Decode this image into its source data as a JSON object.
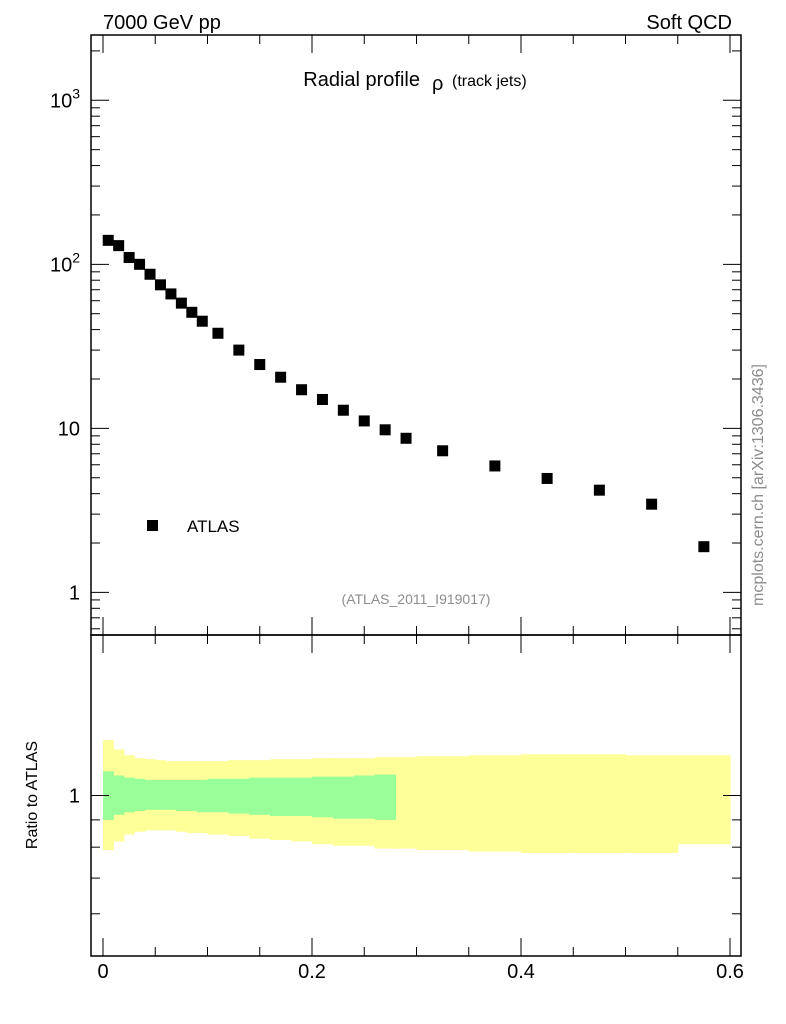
{
  "header": {
    "left": "7000 GeV pp",
    "right": "Soft QCD"
  },
  "side_label": "mcplots.cern.ch [arXiv:1306.3436]",
  "chart_data": {
    "type": "scatter",
    "title": {
      "main": "Radial profile",
      "symbol": "ρ",
      "sub": "(track jets)"
    },
    "analysis_label": "(ATLAS_2011_I919017)",
    "xlim": [
      0,
      0.6
    ],
    "x_ticks": [
      0,
      0.2,
      0.4,
      0.6
    ],
    "x_tick_labels": [
      "0",
      "0.2",
      "0.4",
      "0.6"
    ],
    "top_panel": {
      "yscale": "log",
      "ylim": [
        0.55,
        2500
      ],
      "y_tick_labels": [
        {
          "base": "1",
          "exp": "",
          "value": 1
        },
        {
          "base": "10",
          "exp": "",
          "value": 10
        },
        {
          "base": "10",
          "exp": "2",
          "value": 100
        },
        {
          "base": "10",
          "exp": "3",
          "value": 1000
        }
      ],
      "series": [
        {
          "name": "ATLAS",
          "color": "#000000",
          "marker": "square",
          "x": [
            0.005,
            0.015,
            0.025,
            0.035,
            0.045,
            0.055,
            0.065,
            0.075,
            0.085,
            0.095,
            0.11,
            0.13,
            0.15,
            0.17,
            0.19,
            0.21,
            0.23,
            0.25,
            0.27,
            0.29,
            0.325,
            0.375,
            0.425,
            0.475,
            0.525,
            0.575
          ],
          "y": [
            140,
            130,
            110,
            100,
            87,
            75,
            66,
            58,
            51,
            45,
            38,
            30,
            24.5,
            20.5,
            17.2,
            15,
            12.9,
            11.1,
            9.8,
            8.7,
            7.3,
            5.9,
            4.95,
            4.2,
            3.45,
            1.9
          ]
        }
      ],
      "legend": {
        "position": "lower-left",
        "entries": [
          "ATLAS"
        ]
      }
    },
    "bottom_panel": {
      "ylabel": "Ratio to ATLAS",
      "yscale": "log",
      "ylim": [
        0.5,
        2.0
      ],
      "y_tick_labels": [
        {
          "label": "1",
          "value": 1
        }
      ],
      "bands": [
        {
          "color": "#ffff99",
          "bins": [
            [
              0.0,
              0.01,
              0.79,
              1.27
            ],
            [
              0.01,
              0.02,
              0.82,
              1.22
            ],
            [
              0.02,
              0.03,
              0.845,
              1.19
            ],
            [
              0.03,
              0.04,
              0.855,
              1.175
            ],
            [
              0.04,
              0.05,
              0.86,
              1.17
            ],
            [
              0.05,
              0.06,
              0.86,
              1.165
            ],
            [
              0.06,
              0.07,
              0.86,
              1.16
            ],
            [
              0.07,
              0.08,
              0.855,
              1.16
            ],
            [
              0.08,
              0.09,
              0.85,
              1.16
            ],
            [
              0.09,
              0.1,
              0.85,
              1.16
            ],
            [
              0.1,
              0.12,
              0.845,
              1.16
            ],
            [
              0.12,
              0.14,
              0.84,
              1.165
            ],
            [
              0.14,
              0.16,
              0.83,
              1.165
            ],
            [
              0.16,
              0.18,
              0.825,
              1.17
            ],
            [
              0.18,
              0.2,
              0.82,
              1.17
            ],
            [
              0.2,
              0.22,
              0.81,
              1.175
            ],
            [
              0.22,
              0.24,
              0.805,
              1.175
            ],
            [
              0.24,
              0.26,
              0.805,
              1.175
            ],
            [
              0.26,
              0.28,
              0.795,
              1.18
            ],
            [
              0.28,
              0.3,
              0.795,
              1.18
            ],
            [
              0.3,
              0.35,
              0.79,
              1.185
            ],
            [
              0.35,
              0.4,
              0.785,
              1.19
            ],
            [
              0.4,
              0.45,
              0.78,
              1.195
            ],
            [
              0.45,
              0.5,
              0.78,
              1.195
            ],
            [
              0.5,
              0.55,
              0.78,
              1.19
            ],
            [
              0.55,
              0.6,
              0.81,
              1.19
            ]
          ]
        },
        {
          "color": "#99ff99",
          "bins": [
            [
              0.0,
              0.01,
              0.9,
              1.11
            ],
            [
              0.01,
              0.02,
              0.92,
              1.09
            ],
            [
              0.02,
              0.03,
              0.93,
              1.08
            ],
            [
              0.03,
              0.04,
              0.935,
              1.075
            ],
            [
              0.04,
              0.05,
              0.94,
              1.07
            ],
            [
              0.05,
              0.06,
              0.94,
              1.07
            ],
            [
              0.06,
              0.07,
              0.94,
              1.07
            ],
            [
              0.07,
              0.08,
              0.935,
              1.07
            ],
            [
              0.08,
              0.09,
              0.935,
              1.07
            ],
            [
              0.09,
              0.1,
              0.93,
              1.07
            ],
            [
              0.1,
              0.12,
              0.93,
              1.075
            ],
            [
              0.12,
              0.14,
              0.925,
              1.075
            ],
            [
              0.14,
              0.16,
              0.92,
              1.08
            ],
            [
              0.16,
              0.18,
              0.915,
              1.08
            ],
            [
              0.18,
              0.2,
              0.915,
              1.08
            ],
            [
              0.2,
              0.22,
              0.91,
              1.085
            ],
            [
              0.22,
              0.24,
              0.905,
              1.085
            ],
            [
              0.24,
              0.26,
              0.905,
              1.09
            ],
            [
              0.26,
              0.28,
              0.9,
              1.095
            ]
          ]
        }
      ]
    }
  }
}
